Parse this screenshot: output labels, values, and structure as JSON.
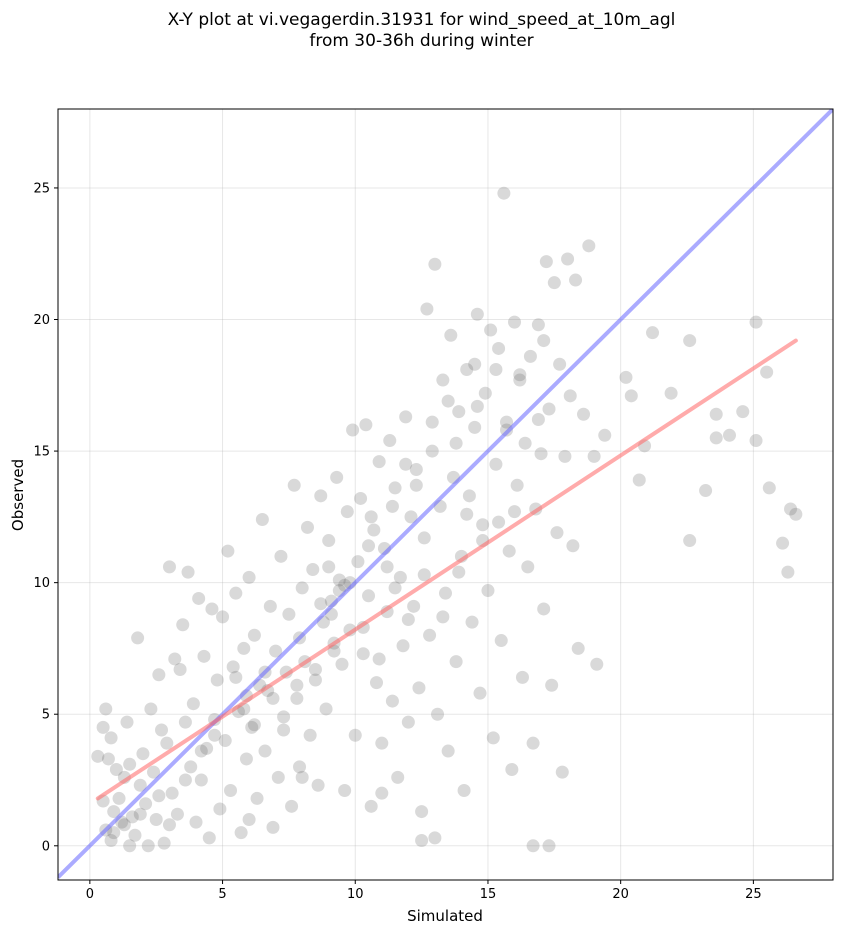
{
  "chart_data": {
    "type": "scatter",
    "title_line1": "X-Y plot at vi.vegagerdin.31931 for wind_speed_at_10m_agl",
    "title_line2": "from 30-36h during winter",
    "xlabel": "Simulated",
    "ylabel": "Observed",
    "xlim": [
      -1.2,
      28
    ],
    "ylim": [
      -1.3,
      28
    ],
    "xticks": [
      0,
      5,
      10,
      15,
      20,
      25
    ],
    "yticks": [
      0,
      5,
      10,
      15,
      20,
      25
    ],
    "grid": true,
    "point_color": "#666666",
    "identity_line": {
      "name": "",
      "color": "#6666ff",
      "from": [
        -1.2,
        -1.2
      ],
      "to": [
        28,
        28
      ]
    },
    "fit_line": {
      "name": "",
      "color": "#ff6666",
      "from": [
        0.3,
        1.8
      ],
      "to": [
        26.6,
        19.2
      ]
    },
    "points": [
      [
        0.3,
        3.4
      ],
      [
        0.5,
        4.5
      ],
      [
        0.6,
        5.2
      ],
      [
        0.7,
        3.3
      ],
      [
        0.8,
        4.1
      ],
      [
        0.5,
        1.7
      ],
      [
        0.6,
        0.6
      ],
      [
        0.8,
        0.2
      ],
      [
        0.9,
        1.3
      ],
      [
        1.0,
        2.9
      ],
      [
        1.1,
        1.8
      ],
      [
        1.2,
        0.9
      ],
      [
        1.3,
        2.6
      ],
      [
        1.4,
        4.7
      ],
      [
        1.5,
        3.1
      ],
      [
        1.6,
        1.1
      ],
      [
        1.7,
        0.4
      ],
      [
        1.8,
        7.9
      ],
      [
        1.9,
        2.3
      ],
      [
        2.0,
        3.5
      ],
      [
        2.1,
        1.6
      ],
      [
        2.2,
        0.0
      ],
      [
        2.3,
        5.2
      ],
      [
        2.4,
        2.8
      ],
      [
        2.5,
        1.0
      ],
      [
        2.6,
        6.5
      ],
      [
        2.7,
        4.4
      ],
      [
        2.8,
        0.1
      ],
      [
        2.9,
        3.9
      ],
      [
        3.0,
        10.6
      ],
      [
        3.1,
        2.0
      ],
      [
        3.2,
        7.1
      ],
      [
        3.3,
        1.2
      ],
      [
        3.4,
        6.7
      ],
      [
        3.5,
        8.4
      ],
      [
        3.6,
        4.7
      ],
      [
        3.7,
        10.4
      ],
      [
        3.8,
        3.0
      ],
      [
        3.9,
        5.4
      ],
      [
        4.0,
        0.9
      ],
      [
        4.1,
        9.4
      ],
      [
        4.2,
        2.5
      ],
      [
        4.3,
        7.2
      ],
      [
        4.4,
        3.7
      ],
      [
        4.5,
        0.3
      ],
      [
        4.6,
        9.0
      ],
      [
        4.7,
        4.8
      ],
      [
        4.8,
        6.3
      ],
      [
        4.9,
        1.4
      ],
      [
        5.0,
        8.7
      ],
      [
        5.1,
        4.0
      ],
      [
        5.2,
        11.2
      ],
      [
        5.3,
        2.1
      ],
      [
        5.4,
        6.8
      ],
      [
        5.5,
        9.6
      ],
      [
        5.6,
        5.1
      ],
      [
        5.7,
        0.5
      ],
      [
        5.8,
        7.5
      ],
      [
        5.9,
        3.3
      ],
      [
        6.0,
        10.2
      ],
      [
        6.1,
        4.5
      ],
      [
        6.2,
        8.0
      ],
      [
        6.3,
        1.8
      ],
      [
        6.4,
        6.1
      ],
      [
        6.5,
        12.4
      ],
      [
        6.6,
        3.6
      ],
      [
        6.7,
        5.9
      ],
      [
        6.8,
        9.1
      ],
      [
        6.9,
        0.7
      ],
      [
        7.0,
        7.4
      ],
      [
        7.1,
        2.6
      ],
      [
        7.2,
        11.0
      ],
      [
        7.3,
        4.9
      ],
      [
        7.4,
        6.6
      ],
      [
        7.5,
        8.8
      ],
      [
        7.6,
        1.5
      ],
      [
        7.7,
        13.7
      ],
      [
        7.8,
        5.6
      ],
      [
        7.9,
        3.0
      ],
      [
        8.0,
        9.8
      ],
      [
        8.1,
        7.0
      ],
      [
        8.2,
        12.1
      ],
      [
        8.3,
        4.2
      ],
      [
        8.4,
        10.5
      ],
      [
        8.5,
        6.3
      ],
      [
        8.6,
        2.3
      ],
      [
        8.7,
        13.3
      ],
      [
        8.8,
        8.5
      ],
      [
        8.9,
        5.2
      ],
      [
        9.0,
        11.6
      ],
      [
        9.1,
        9.3
      ],
      [
        9.2,
        7.7
      ],
      [
        9.3,
        14.0
      ],
      [
        9.4,
        10.1
      ],
      [
        9.5,
        6.9
      ],
      [
        9.6,
        2.1
      ],
      [
        9.7,
        12.7
      ],
      [
        9.8,
        8.2
      ],
      [
        9.9,
        15.8
      ],
      [
        10.0,
        4.2
      ],
      [
        10.1,
        10.8
      ],
      [
        10.2,
        13.2
      ],
      [
        10.3,
        7.3
      ],
      [
        10.4,
        16.0
      ],
      [
        10.5,
        9.5
      ],
      [
        10.6,
        1.5
      ],
      [
        10.7,
        12.0
      ],
      [
        10.8,
        6.2
      ],
      [
        10.9,
        14.6
      ],
      [
        11.0,
        3.9
      ],
      [
        11.1,
        11.3
      ],
      [
        11.2,
        8.9
      ],
      [
        11.3,
        15.4
      ],
      [
        11.4,
        5.5
      ],
      [
        11.5,
        13.6
      ],
      [
        11.6,
        2.6
      ],
      [
        11.7,
        10.2
      ],
      [
        11.8,
        7.6
      ],
      [
        11.9,
        16.3
      ],
      [
        12.0,
        4.7
      ],
      [
        12.1,
        12.5
      ],
      [
        12.2,
        9.1
      ],
      [
        12.3,
        14.3
      ],
      [
        12.4,
        6.0
      ],
      [
        12.5,
        1.3
      ],
      [
        12.6,
        11.7
      ],
      [
        12.7,
        20.4
      ],
      [
        12.8,
        8.0
      ],
      [
        12.9,
        15.0
      ],
      [
        13.0,
        22.1
      ],
      [
        13.1,
        5.0
      ],
      [
        13.2,
        12.9
      ],
      [
        13.3,
        17.7
      ],
      [
        13.4,
        9.6
      ],
      [
        13.5,
        3.6
      ],
      [
        13.6,
        19.4
      ],
      [
        13.7,
        14.0
      ],
      [
        13.8,
        7.0
      ],
      [
        13.9,
        16.5
      ],
      [
        14.0,
        11.0
      ],
      [
        14.1,
        2.1
      ],
      [
        14.2,
        18.1
      ],
      [
        14.3,
        13.3
      ],
      [
        14.4,
        8.5
      ],
      [
        14.5,
        15.9
      ],
      [
        14.6,
        20.2
      ],
      [
        14.7,
        5.8
      ],
      [
        14.8,
        12.2
      ],
      [
        14.9,
        17.2
      ],
      [
        15.0,
        9.7
      ],
      [
        15.1,
        19.6
      ],
      [
        15.2,
        4.1
      ],
      [
        15.3,
        14.5
      ],
      [
        15.4,
        18.9
      ],
      [
        15.5,
        7.8
      ],
      [
        15.6,
        24.8
      ],
      [
        15.7,
        16.1
      ],
      [
        15.8,
        11.2
      ],
      [
        15.9,
        2.9
      ],
      [
        16.0,
        19.9
      ],
      [
        16.1,
        13.7
      ],
      [
        16.2,
        17.9
      ],
      [
        16.3,
        6.4
      ],
      [
        16.4,
        15.3
      ],
      [
        16.5,
        10.6
      ],
      [
        16.6,
        18.6
      ],
      [
        16.7,
        3.9
      ],
      [
        16.8,
        12.8
      ],
      [
        16.9,
        19.8
      ],
      [
        17.0,
        14.9
      ],
      [
        17.1,
        9.0
      ],
      [
        17.2,
        22.2
      ],
      [
        17.3,
        16.6
      ],
      [
        17.4,
        6.1
      ],
      [
        17.5,
        21.4
      ],
      [
        17.6,
        11.9
      ],
      [
        17.7,
        18.3
      ],
      [
        17.8,
        2.8
      ],
      [
        17.9,
        14.8
      ],
      [
        18.0,
        22.3
      ],
      [
        18.1,
        17.1
      ],
      [
        18.2,
        11.4
      ],
      [
        18.3,
        21.5
      ],
      [
        18.4,
        7.5
      ],
      [
        18.6,
        16.4
      ],
      [
        18.8,
        22.8
      ],
      [
        19.0,
        14.8
      ],
      [
        19.1,
        6.9
      ],
      [
        19.4,
        15.6
      ],
      [
        20.2,
        17.8
      ],
      [
        20.4,
        17.1
      ],
      [
        20.7,
        13.9
      ],
      [
        20.9,
        15.2
      ],
      [
        21.2,
        19.5
      ],
      [
        21.9,
        17.2
      ],
      [
        22.6,
        19.2
      ],
      [
        22.6,
        11.6
      ],
      [
        23.2,
        13.5
      ],
      [
        23.6,
        16.4
      ],
      [
        23.6,
        15.5
      ],
      [
        24.1,
        15.6
      ],
      [
        24.6,
        16.5
      ],
      [
        25.1,
        19.9
      ],
      [
        25.1,
        15.4
      ],
      [
        25.5,
        18.0
      ],
      [
        25.6,
        13.6
      ],
      [
        26.1,
        11.5
      ],
      [
        26.4,
        12.8
      ],
      [
        26.3,
        10.4
      ],
      [
        26.6,
        12.6
      ],
      [
        16.7,
        0.0
      ],
      [
        17.3,
        0.0
      ],
      [
        13.0,
        0.3
      ],
      [
        12.5,
        0.2
      ],
      [
        11.0,
        2.0
      ],
      [
        8.0,
        2.6
      ],
      [
        6.0,
        1.0
      ],
      [
        3.0,
        0.8
      ],
      [
        1.5,
        0.0
      ],
      [
        0.9,
        0.5
      ],
      [
        5.5,
        6.4
      ],
      [
        5.8,
        5.2
      ],
      [
        6.2,
        4.6
      ],
      [
        6.9,
        5.6
      ],
      [
        7.3,
        4.4
      ],
      [
        7.8,
        6.1
      ],
      [
        8.5,
        6.7
      ],
      [
        9.2,
        7.4
      ],
      [
        9.6,
        9.9
      ],
      [
        10.3,
        8.3
      ],
      [
        10.9,
        7.1
      ],
      [
        11.5,
        9.8
      ],
      [
        12.0,
        8.6
      ],
      [
        12.6,
        10.3
      ],
      [
        13.3,
        8.7
      ],
      [
        13.9,
        10.4
      ],
      [
        14.2,
        12.6
      ],
      [
        14.8,
        11.6
      ],
      [
        15.4,
        12.3
      ],
      [
        16.0,
        12.7
      ],
      [
        9.0,
        10.6
      ],
      [
        9.4,
        9.7
      ],
      [
        9.8,
        10.0
      ],
      [
        9.1,
        8.8
      ],
      [
        8.7,
        9.2
      ],
      [
        10.5,
        11.4
      ],
      [
        11.2,
        10.6
      ],
      [
        7.9,
        7.9
      ],
      [
        6.6,
        6.6
      ],
      [
        5.9,
        5.7
      ],
      [
        4.7,
        4.2
      ],
      [
        4.2,
        3.6
      ],
      [
        3.6,
        2.5
      ],
      [
        2.6,
        1.9
      ],
      [
        1.9,
        1.2
      ],
      [
        1.3,
        0.8
      ],
      [
        14.5,
        18.3
      ],
      [
        15.3,
        18.1
      ],
      [
        16.2,
        17.7
      ],
      [
        17.1,
        19.2
      ],
      [
        13.5,
        16.9
      ],
      [
        12.9,
        16.1
      ],
      [
        11.9,
        14.5
      ],
      [
        11.4,
        12.9
      ],
      [
        10.6,
        12.5
      ],
      [
        12.3,
        13.7
      ],
      [
        13.8,
        15.3
      ],
      [
        14.6,
        16.7
      ],
      [
        15.7,
        15.8
      ],
      [
        16.9,
        16.2
      ]
    ]
  }
}
